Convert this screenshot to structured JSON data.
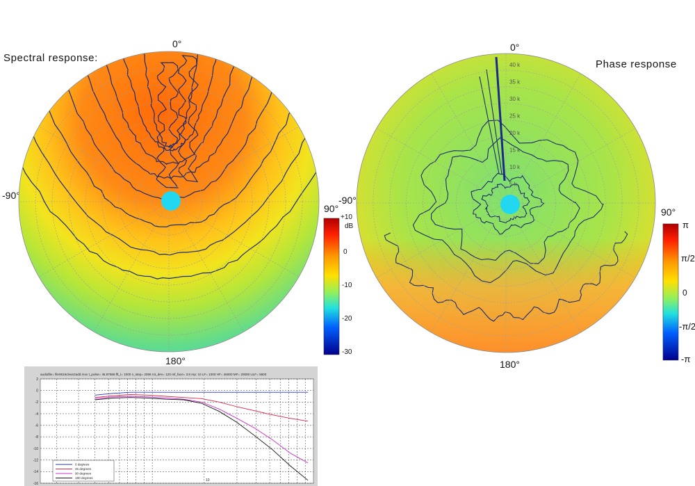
{
  "spectral": {
    "title": "Spectral response:",
    "angle_top": "0°",
    "angle_left": "-90°",
    "angle_right": "90°",
    "angle_bottom": "180°",
    "colorbar_unit": "dB",
    "colorbar_ticks": [
      "+10",
      "0",
      "-10",
      "-20",
      "-30"
    ]
  },
  "phase": {
    "title": "Phase response",
    "angle_top": "0°",
    "angle_left": "-90°",
    "angle_right": "90°",
    "angle_bottom": "180°",
    "colorbar_ticks": [
      "π",
      "π/2",
      "0",
      "-π/2",
      "-π"
    ],
    "radial_labels": [
      "40 k",
      "35 k",
      "30 k",
      "25 k",
      "20 k",
      "15 k",
      "10 k",
      "5 k"
    ]
  },
  "colors": {
    "hot": "#ff7a10",
    "warm": "#ffd21a",
    "mid": "#b8e83a",
    "cool": "#5fe0a0",
    "cold": "#2ec8f0",
    "contour": "#1a2a6a"
  },
  "chart_data": [
    {
      "type": "line",
      "header": "audiofile= file0615clean2add.mov   t_pulse= 45.87586   fft_l= 1000   n_step= 2066   rot_dev= 120   ref_face= 3.8   rep: 10 LF= 1000   HF= 45000   MF= 20000   ULF= 5800",
      "x_tick_label": "10",
      "ylim": [
        -16,
        2
      ],
      "y_ticks": [
        "2",
        "0",
        "-2",
        "-4",
        "-6",
        "-8",
        "-10",
        "-12",
        "-14",
        "-16"
      ],
      "grid": true,
      "legend_position": "bottom-left",
      "series": [
        {
          "name": "0 degrees",
          "color": "#2233cc",
          "values": [
            -0.8,
            -0.5,
            -0.3,
            -0.3,
            -0.3,
            -0.3,
            -0.3,
            -0.3,
            -0.3,
            -0.3,
            -0.3,
            -0.3,
            -0.3
          ]
        },
        {
          "name": "45 degrees",
          "color": "#dd2244",
          "values": [
            -1.2,
            -0.9,
            -0.7,
            -0.8,
            -1.0,
            -1.2,
            -1.4,
            -2.0,
            -2.8,
            -3.5,
            -4.2,
            -4.8,
            -5.3
          ]
        },
        {
          "name": "90 degrees",
          "color": "#cc33cc",
          "values": [
            -1.4,
            -1.1,
            -1.0,
            -1.1,
            -1.3,
            -1.5,
            -2.0,
            -3.2,
            -4.8,
            -6.5,
            -8.5,
            -10.8,
            -12.5
          ]
        },
        {
          "name": "180 degrees",
          "color": "#111111",
          "values": [
            -1.6,
            -1.3,
            -1.2,
            -1.3,
            -1.5,
            -1.6,
            -2.2,
            -3.6,
            -5.5,
            -7.8,
            -10.2,
            -13.0,
            -15.5
          ]
        }
      ]
    }
  ]
}
